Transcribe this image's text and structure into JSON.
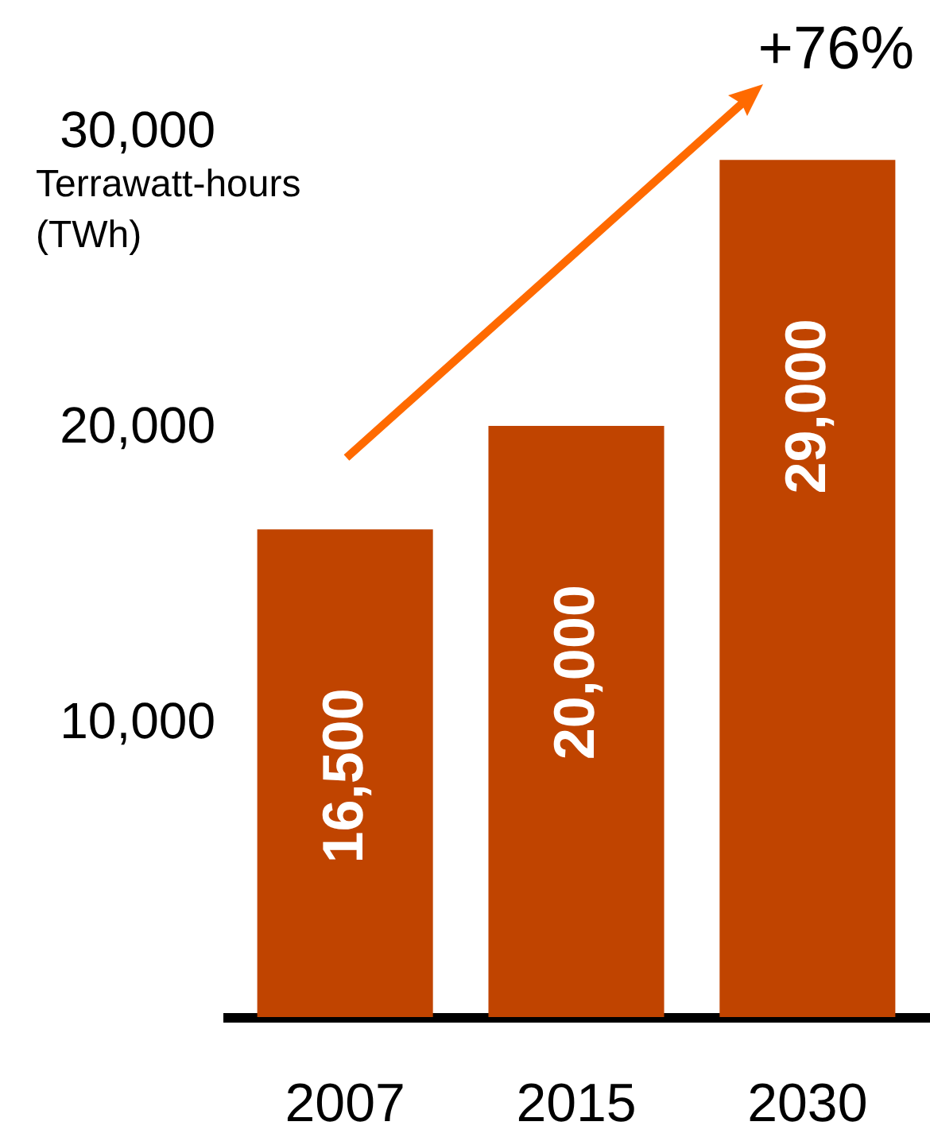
{
  "chart_data": {
    "type": "bar",
    "ylabel": "Terrawatt-hours (TWh)",
    "categories": [
      "2007",
      "2015",
      "2030"
    ],
    "values": [
      16500,
      20000,
      29000
    ],
    "color": "#c04400",
    "ylim": [
      0,
      30000
    ],
    "yticks": [
      {
        "value": 10000,
        "label": "10,000"
      },
      {
        "value": 20000,
        "label": "20,000"
      },
      {
        "value": 30000,
        "label": "30,000"
      }
    ],
    "data_labels": true,
    "value_labels": [
      "16,500",
      "20,000",
      "29,000"
    ],
    "annotations": [
      "+76%"
    ],
    "grid": false
  }
}
